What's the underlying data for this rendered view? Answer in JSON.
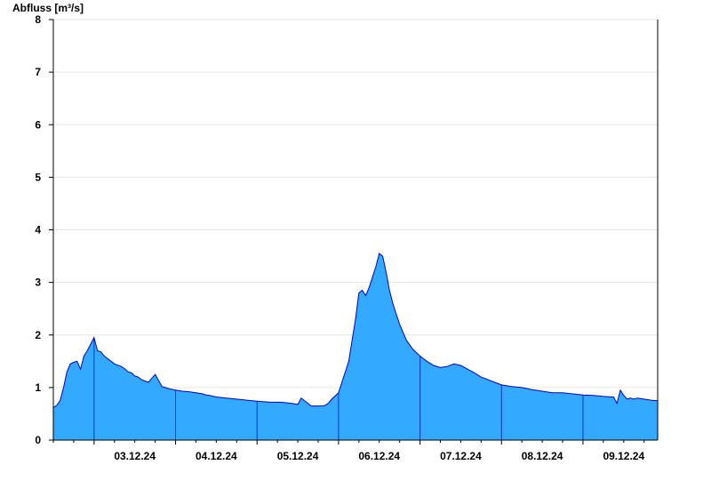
{
  "chart_data": {
    "type": "area",
    "title": "Abfluss [m³/s]",
    "xlabel": "",
    "ylabel": "Abfluss [m³/s]",
    "ylim": [
      0,
      8
    ],
    "yticks": [
      "0",
      "1",
      "2",
      "3",
      "4",
      "5",
      "6",
      "7",
      "8"
    ],
    "xlim": [
      "2024-12-02T12:00",
      "2024-12-09T22:00"
    ],
    "day_boundaries": [
      "2024-12-03",
      "2024-12-04",
      "2024-12-05",
      "2024-12-06",
      "2024-12-07",
      "2024-12-08",
      "2024-12-09"
    ],
    "xtick_labels": [
      "03.12.24",
      "04.12.24",
      "05.12.24",
      "06.12.24",
      "07.12.24",
      "08.12.24",
      "09.12.24"
    ],
    "grid": true,
    "colors": {
      "fill": "#33aaff",
      "line": "#0000cc",
      "grid": "#e6e6e6",
      "axis": "#000000"
    },
    "series": [
      {
        "x": [
          "2024-12-02T12:00",
          "2024-12-02T13:00",
          "2024-12-02T14:00",
          "2024-12-02T15:00",
          "2024-12-02T16:00",
          "2024-12-02T17:00",
          "2024-12-02T18:00",
          "2024-12-02T19:00",
          "2024-12-02T20:00",
          "2024-12-02T21:00",
          "2024-12-02T22:00",
          "2024-12-03T00:00",
          "2024-12-03T01:00",
          "2024-12-03T02:00",
          "2024-12-03T03:00",
          "2024-12-03T04:00",
          "2024-12-03T06:00",
          "2024-12-03T08:00",
          "2024-12-03T09:00",
          "2024-12-03T10:00",
          "2024-12-03T11:00",
          "2024-12-03T12:00",
          "2024-12-03T13:00",
          "2024-12-03T14:00",
          "2024-12-03T16:00",
          "2024-12-03T18:00",
          "2024-12-03T20:00",
          "2024-12-03T21:00",
          "2024-12-03T22:00",
          "2024-12-04T00:00",
          "2024-12-04T02:00",
          "2024-12-04T04:00",
          "2024-12-04T06:00",
          "2024-12-04T08:00",
          "2024-12-04T09:00",
          "2024-12-04T10:00",
          "2024-12-04T12:00",
          "2024-12-04T15:00",
          "2024-12-04T18:00",
          "2024-12-04T21:00",
          "2024-12-05T00:00",
          "2024-12-05T04:00",
          "2024-12-05T07:00",
          "2024-12-05T10:00",
          "2024-12-05T12:00",
          "2024-12-05T13:00",
          "2024-12-05T16:00",
          "2024-12-05T19:00",
          "2024-12-05T20:00",
          "2024-12-05T21:00",
          "2024-12-05T22:00",
          "2024-12-06T00:00",
          "2024-12-06T03:00",
          "2024-12-06T05:00",
          "2024-12-06T06:00",
          "2024-12-06T07:00",
          "2024-12-06T08:00",
          "2024-12-06T09:00",
          "2024-12-06T10:00",
          "2024-12-06T11:00",
          "2024-12-06T12:00",
          "2024-12-06T13:00",
          "2024-12-06T14:00",
          "2024-12-06T15:00",
          "2024-12-06T16:00",
          "2024-12-06T17:00",
          "2024-12-06T18:00",
          "2024-12-06T19:00",
          "2024-12-06T20:00",
          "2024-12-06T22:00",
          "2024-12-07T00:00",
          "2024-12-07T02:00",
          "2024-12-07T04:00",
          "2024-12-07T06:00",
          "2024-12-07T08:00",
          "2024-12-07T10:00",
          "2024-12-07T12:00",
          "2024-12-07T14:00",
          "2024-12-07T16:00",
          "2024-12-07T18:00",
          "2024-12-07T20:00",
          "2024-12-07T22:00",
          "2024-12-08T00:00",
          "2024-12-08T03:00",
          "2024-12-08T06:00",
          "2024-12-08T09:00",
          "2024-12-08T12:00",
          "2024-12-08T15:00",
          "2024-12-08T18:00",
          "2024-12-08T21:00",
          "2024-12-09T00:00",
          "2024-12-09T03:00",
          "2024-12-09T06:00",
          "2024-12-09T09:00",
          "2024-12-09T10:00",
          "2024-12-09T11:00",
          "2024-12-09T12:00",
          "2024-12-09T13:00",
          "2024-12-09T14:00",
          "2024-12-09T15:00",
          "2024-12-09T16:00",
          "2024-12-09T18:00",
          "2024-12-09T20:00",
          "2024-12-09T22:00"
        ],
        "y": [
          0.62,
          0.66,
          0.75,
          1.0,
          1.3,
          1.45,
          1.48,
          1.5,
          1.35,
          1.6,
          1.7,
          1.95,
          1.7,
          1.68,
          1.6,
          1.55,
          1.45,
          1.4,
          1.36,
          1.3,
          1.28,
          1.22,
          1.2,
          1.15,
          1.1,
          1.25,
          1.02,
          1.0,
          0.98,
          0.95,
          0.93,
          0.92,
          0.9,
          0.88,
          0.86,
          0.85,
          0.82,
          0.8,
          0.78,
          0.76,
          0.74,
          0.72,
          0.72,
          0.7,
          0.68,
          0.8,
          0.65,
          0.65,
          0.66,
          0.7,
          0.78,
          0.9,
          1.5,
          2.3,
          2.8,
          2.85,
          2.75,
          2.9,
          3.1,
          3.3,
          3.55,
          3.5,
          3.2,
          2.85,
          2.6,
          2.4,
          2.2,
          2.05,
          1.9,
          1.72,
          1.6,
          1.5,
          1.42,
          1.38,
          1.4,
          1.45,
          1.42,
          1.35,
          1.28,
          1.2,
          1.15,
          1.1,
          1.05,
          1.02,
          1.0,
          0.96,
          0.93,
          0.9,
          0.9,
          0.88,
          0.86,
          0.85,
          0.83,
          0.82,
          0.7,
          0.95,
          0.85,
          0.78,
          0.8,
          0.78,
          0.8,
          0.78,
          0.76,
          0.75
        ]
      }
    ]
  }
}
